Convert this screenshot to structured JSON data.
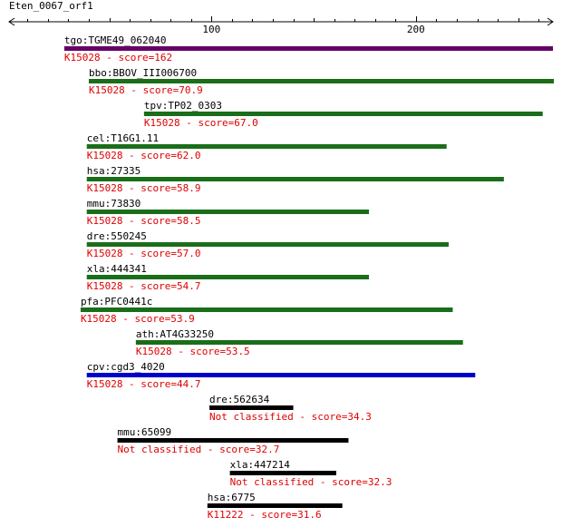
{
  "query_name": "Eten_0067_orf1",
  "axis": {
    "min": 1,
    "max": 267,
    "ticks": [
      100,
      200
    ],
    "tick_labels": [
      "100",
      "200"
    ]
  },
  "colors": {
    "ruler": "#000000",
    "label_text": "#000000",
    "ko_text": "#e00000",
    "purple": "#660066",
    "green": "#1a6e1a",
    "blue": "#0000cc",
    "black": "#000000"
  },
  "hits": [
    {
      "gene": "tgo:TGME49_062040",
      "annotation": "K15028 - score=162",
      "start": 28,
      "end": 267,
      "color": "purple"
    },
    {
      "gene": "bbo:BBOV_III006700",
      "annotation": "K15028 - score=70.9",
      "start": 40,
      "end": 269,
      "color": "green"
    },
    {
      "gene": "tpv:TP02_0303",
      "annotation": "K15028 - score=67.0",
      "start": 67,
      "end": 262,
      "color": "green"
    },
    {
      "gene": "cel:T16G1.11",
      "annotation": "K15028 - score=62.0",
      "start": 39,
      "end": 215,
      "color": "green"
    },
    {
      "gene": "hsa:27335",
      "annotation": "K15028 - score=58.9",
      "start": 39,
      "end": 243,
      "color": "green"
    },
    {
      "gene": "mmu:73830",
      "annotation": "K15028 - score=58.5",
      "start": 39,
      "end": 177,
      "color": "green"
    },
    {
      "gene": "dre:550245",
      "annotation": "K15028 - score=57.0",
      "start": 39,
      "end": 216,
      "color": "green"
    },
    {
      "gene": "xla:444341",
      "annotation": "K15028 - score=54.7",
      "start": 39,
      "end": 177,
      "color": "green"
    },
    {
      "gene": "pfa:PFC0441c",
      "annotation": "K15028 - score=53.9",
      "start": 36,
      "end": 218,
      "color": "green"
    },
    {
      "gene": "ath:AT4G33250",
      "annotation": "K15028 - score=53.5",
      "start": 63,
      "end": 223,
      "color": "green"
    },
    {
      "gene": "cpv:cgd3_4020",
      "annotation": "K15028 - score=44.7",
      "start": 39,
      "end": 229,
      "color": "blue"
    },
    {
      "gene": "dre:562634",
      "annotation": "Not classified - score=34.3",
      "start": 99,
      "end": 140,
      "color": "black"
    },
    {
      "gene": "mmu:65099",
      "annotation": "Not classified - score=32.7",
      "start": 54,
      "end": 167,
      "color": "black"
    },
    {
      "gene": "xla:447214",
      "annotation": "Not classified - score=32.3",
      "start": 109,
      "end": 161,
      "color": "black"
    },
    {
      "gene": "hsa:6775",
      "annotation": "K11222 - score=31.6",
      "start": 98,
      "end": 164,
      "color": "black"
    }
  ]
}
